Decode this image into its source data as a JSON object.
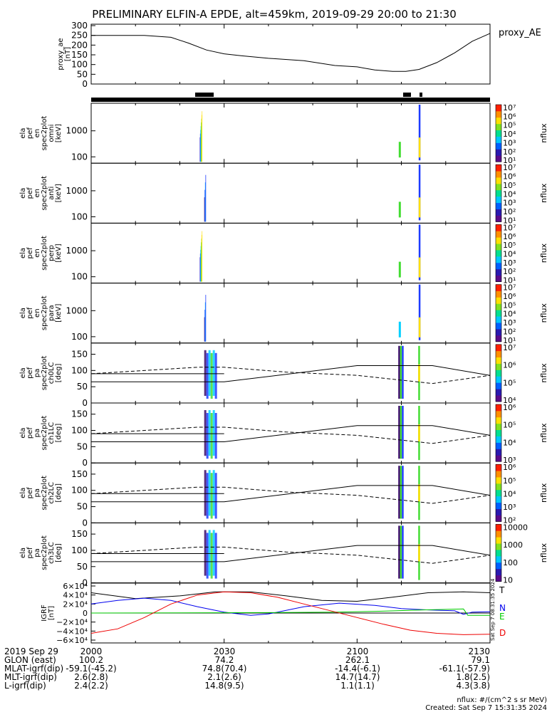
{
  "title": "PRELIMINARY ELFIN-A EPDE, alt=459km, 2019-09-29 20:00 to 21:30",
  "colors": {
    "bar_black": "#000000",
    "bar_yellow": "#ffdd00",
    "bar_red": "#ee1111",
    "grf_T": "#000000",
    "grf_N": "#0000ee",
    "grf_E": "#00cc00",
    "grf_D": "#ee0000",
    "spec_blue": "#1e3cff",
    "spec_cyan": "#00d0ff",
    "spec_green": "#44dd33",
    "spec_yellow": "#ffe000",
    "spec_orange": "#ff8000",
    "spec_purple": "#3a0a6a"
  },
  "chart_data": {
    "type": "stacked-timeseries",
    "x_axis": {
      "range_minutes": [
        0,
        90
      ],
      "tick_minutes": [
        0,
        30,
        60,
        90
      ],
      "tick_labels": [
        "2000",
        "2030",
        "2100",
        "2130"
      ]
    },
    "ae_panel": {
      "ylabel_lines": [
        "proxy_ae",
        "[nT]"
      ],
      "legend": "proxy_AE",
      "ylim": [
        0,
        300
      ],
      "yticks": [
        "0",
        "50",
        "100",
        "150",
        "200",
        "250",
        "300"
      ],
      "x": [
        0,
        12,
        18,
        22,
        26,
        30,
        34,
        40,
        48,
        55,
        60,
        64,
        68,
        71,
        74,
        78,
        82,
        86,
        90
      ],
      "y": [
        250,
        250,
        240,
        210,
        175,
        155,
        145,
        132,
        120,
        95,
        88,
        72,
        65,
        65,
        75,
        110,
        160,
        220,
        260
      ]
    },
    "spectrogram_panels": [
      {
        "ylabel_lines": [
          "ela",
          "pef",
          "en",
          "spec2plot",
          "omni",
          "[keV]"
        ],
        "yticks": [
          "100",
          "1000"
        ],
        "colorbar_ticks": [
          "10^1",
          "10^2",
          "10^3",
          "10^4",
          "10^5",
          "10^6",
          "10^7"
        ],
        "unit": "nflux"
      },
      {
        "ylabel_lines": [
          "ela",
          "pef",
          "en",
          "spec2plot",
          "anti",
          "[keV]"
        ],
        "yticks": [
          "100",
          "1000"
        ],
        "colorbar_ticks": [
          "10^1",
          "10^2",
          "10^3",
          "10^4",
          "10^5",
          "10^6",
          "10^7"
        ],
        "unit": "nflux"
      },
      {
        "ylabel_lines": [
          "ela",
          "pef",
          "en",
          "spec2plot",
          "perp",
          "[keV]"
        ],
        "yticks": [
          "100",
          "1000"
        ],
        "colorbar_ticks": [
          "10^1",
          "10^2",
          "10^3",
          "10^4",
          "10^5",
          "10^6",
          "10^7"
        ],
        "unit": "nflux"
      },
      {
        "ylabel_lines": [
          "ela",
          "pef",
          "en",
          "spec2plot",
          "para",
          "[keV]"
        ],
        "yticks": [
          "100",
          "1000"
        ],
        "colorbar_ticks": [
          "10^1",
          "10^2",
          "10^3",
          "10^4",
          "10^5",
          "10^6",
          "10^7"
        ],
        "unit": "nflux"
      }
    ],
    "pitch_angle_panels": [
      {
        "ylabel_lines": [
          "ela",
          "pef",
          "pa",
          "spec2plot",
          "ch0LC",
          "[deg]"
        ],
        "yticks": [
          "0",
          "50",
          "100",
          "150"
        ],
        "colorbar_ticks": [
          "10^4",
          "10^5",
          "10^6",
          "10^7"
        ],
        "unit": "nflux"
      },
      {
        "ylabel_lines": [
          "ela",
          "pef",
          "pa",
          "spec2plot",
          "ch1LC",
          "[deg]"
        ],
        "yticks": [
          "0",
          "50",
          "100",
          "150"
        ],
        "colorbar_ticks": [
          "10^3",
          "10^4",
          "10^5",
          "10^6"
        ],
        "unit": "nflux"
      },
      {
        "ylabel_lines": [
          "ela",
          "pef",
          "pa",
          "spec2plot",
          "ch2LC",
          "[deg]"
        ],
        "yticks": [
          "0",
          "50",
          "100",
          "150"
        ],
        "colorbar_ticks": [
          "10^2",
          "10^3",
          "10^4",
          "10^5",
          "10^6"
        ],
        "unit": "nflux"
      },
      {
        "ylabel_lines": [
          "ela",
          "pef",
          "pa",
          "spec2plot",
          "ch3LC",
          "[deg]"
        ],
        "yticks": [
          "0",
          "50",
          "100",
          "150"
        ],
        "colorbar_ticks": [
          "10",
          "100",
          "1000",
          "10000"
        ],
        "unit": "nflux"
      }
    ],
    "loss_cone_lines": {
      "solid_x": [
        0,
        26,
        30,
        60,
        77,
        90
      ],
      "solid_y": [
        65,
        65,
        65,
        115,
        115,
        85
      ],
      "dashed_x": [
        0,
        24,
        30,
        44,
        60,
        77,
        90
      ],
      "dashed_y": [
        90,
        110,
        110,
        95,
        85,
        60,
        85
      ],
      "flat_y": 90
    },
    "grf_panel": {
      "ylabel_lines": [
        "IGRF",
        "[nT]"
      ],
      "ylim": [
        -60000,
        60000
      ],
      "ytick_values": [
        60000,
        40000,
        20000,
        0,
        -20000,
        -40000,
        -60000
      ],
      "ytick_labels": [
        "6×10⁴",
        "4×10⁴",
        "2×10⁴",
        "0",
        "−2×10⁴",
        "−4×10⁴",
        "−6×10⁴"
      ],
      "series": [
        {
          "name": "T",
          "x": [
            0,
            10,
            20,
            28,
            36,
            44,
            52,
            60,
            68,
            76,
            84,
            90
          ],
          "y": [
            45000,
            32000,
            38000,
            47000,
            47000,
            38000,
            28000,
            26000,
            35000,
            45000,
            47000,
            45000
          ]
        },
        {
          "name": "N",
          "x": [
            0,
            6,
            12,
            18,
            24,
            30,
            36,
            40,
            48,
            56,
            64,
            70,
            76,
            82,
            84,
            86,
            90
          ],
          "y": [
            20000,
            28000,
            33000,
            28000,
            14000,
            2000,
            -5000,
            -2000,
            14000,
            22000,
            17000,
            10000,
            7000,
            5000,
            -3000,
            2000,
            3000
          ]
        },
        {
          "name": "E",
          "x": [
            0,
            20,
            40,
            55,
            65,
            75,
            80,
            84,
            85,
            90
          ],
          "y": [
            0,
            500,
            1000,
            2000,
            4000,
            7000,
            8000,
            9000,
            -5000,
            -5000
          ]
        },
        {
          "name": "D",
          "x": [
            0,
            6,
            12,
            18,
            24,
            30,
            36,
            42,
            48,
            54,
            60,
            66,
            72,
            78,
            84,
            90
          ],
          "y": [
            -45000,
            -35000,
            -10000,
            20000,
            40000,
            47000,
            45000,
            35000,
            20000,
            5000,
            -10000,
            -25000,
            -38000,
            -45000,
            -48000,
            -47000
          ]
        }
      ]
    }
  },
  "epoch_rows": [
    {
      "label": "2019 Sep 29",
      "values": [
        "2000",
        "2030",
        "2100",
        "2130"
      ]
    },
    {
      "label": "GLON (east)",
      "values": [
        "100.2",
        "74.2",
        "262.1",
        "79.1"
      ]
    },
    {
      "label": "MLAT-igrf(dip)",
      "values": [
        "-59.1(-45.2)",
        "74.8(70.4)",
        "-14.4(-6.1)",
        "-61.1(-57.9)"
      ]
    },
    {
      "label": "MLT-igrf(dip)",
      "values": [
        "2.6(2.8)",
        "2.1(2.6)",
        "14.7(14.7)",
        "1.8(2.5)"
      ]
    },
    {
      "label": "L-igrf(dip)",
      "values": [
        "2.4(2.2)",
        "14.8(9.5)",
        "1.1(1.1)",
        "4.3(3.8)"
      ]
    }
  ],
  "footer": {
    "units": "nflux: #/(cm^2 s sr MeV)",
    "created": "Created: Sat Sep  7 15:31:35 2024",
    "side_stamp": "Sat Sep  7 08:31:35 2024"
  }
}
